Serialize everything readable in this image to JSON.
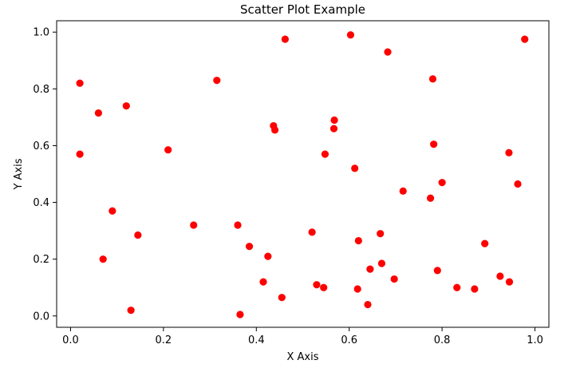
{
  "chart_data": {
    "type": "scatter",
    "title": "Scatter Plot Example",
    "xlabel": "X Axis",
    "ylabel": "Y Axis",
    "xlim": [
      -0.03,
      1.03
    ],
    "ylim": [
      -0.04,
      1.04
    ],
    "xticks": [
      "0.0",
      "0.2",
      "0.4",
      "0.6",
      "0.8",
      "1.0"
    ],
    "yticks": [
      "0.0",
      "0.2",
      "0.4",
      "0.6",
      "0.8",
      "1.0"
    ],
    "grid": false,
    "marker_color": "#ff0000",
    "x": [
      0.02,
      0.02,
      0.06,
      0.07,
      0.09,
      0.12,
      0.13,
      0.145,
      0.21,
      0.265,
      0.315,
      0.36,
      0.365,
      0.385,
      0.415,
      0.425,
      0.437,
      0.44,
      0.455,
      0.462,
      0.52,
      0.53,
      0.545,
      0.548,
      0.567,
      0.568,
      0.603,
      0.612,
      0.618,
      0.62,
      0.64,
      0.645,
      0.667,
      0.67,
      0.683,
      0.697,
      0.716,
      0.775,
      0.78,
      0.782,
      0.79,
      0.8,
      0.832,
      0.87,
      0.892,
      0.925,
      0.944,
      0.945,
      0.963,
      0.978
    ],
    "y": [
      0.82,
      0.57,
      0.715,
      0.2,
      0.37,
      0.74,
      0.02,
      0.285,
      0.585,
      0.32,
      0.83,
      0.32,
      0.005,
      0.245,
      0.12,
      0.21,
      0.67,
      0.655,
      0.065,
      0.975,
      0.295,
      0.11,
      0.1,
      0.57,
      0.66,
      0.69,
      0.99,
      0.52,
      0.095,
      0.265,
      0.04,
      0.165,
      0.29,
      0.185,
      0.93,
      0.13,
      0.44,
      0.415,
      0.835,
      0.605,
      0.16,
      0.47,
      0.1,
      0.095,
      0.255,
      0.14,
      0.575,
      0.12,
      0.465,
      0.975
    ]
  }
}
